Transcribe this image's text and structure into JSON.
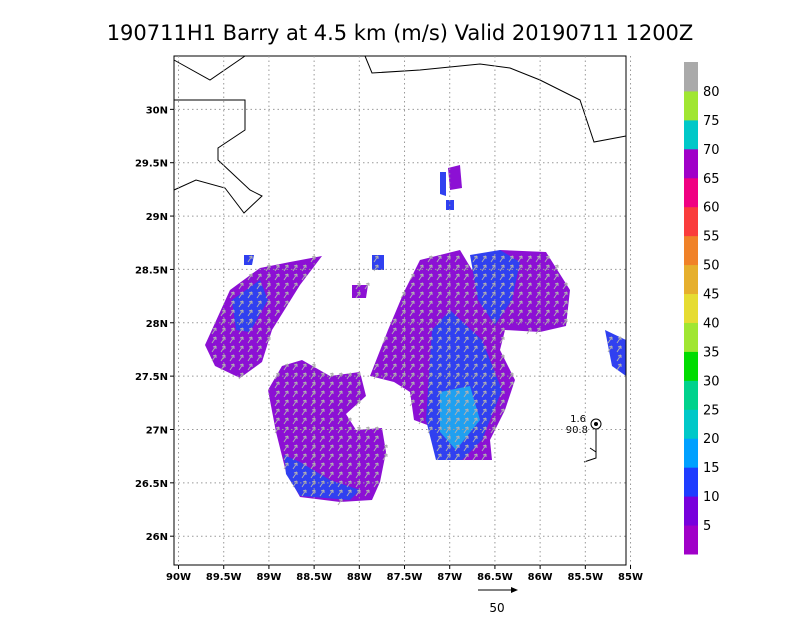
{
  "title": "190711H1 Barry at 4.5 km (m/s) Valid 20190711  1200Z",
  "x_axis": {
    "lim": [
      -90.05,
      -85.05
    ],
    "ticks": [
      {
        "value": -90,
        "label": "90W"
      },
      {
        "value": -89.5,
        "label": "89.5W"
      },
      {
        "value": -89,
        "label": "89W"
      },
      {
        "value": -88.5,
        "label": "88.5W"
      },
      {
        "value": -88,
        "label": "88W"
      },
      {
        "value": -87.5,
        "label": "87.5W"
      },
      {
        "value": -87,
        "label": "87W"
      },
      {
        "value": -86.5,
        "label": "86.5W"
      },
      {
        "value": -86,
        "label": "86W"
      },
      {
        "value": -85.5,
        "label": "85.5W"
      },
      {
        "value": -85,
        "label": "85W"
      }
    ]
  },
  "y_axis": {
    "lim": [
      25.73,
      30.5
    ],
    "ticks": [
      {
        "value": 26,
        "label": "26N"
      },
      {
        "value": 26.5,
        "label": "26.5N"
      },
      {
        "value": 27,
        "label": "27N"
      },
      {
        "value": 27.5,
        "label": "27.5N"
      },
      {
        "value": 28,
        "label": "28N"
      },
      {
        "value": 28.5,
        "label": "28.5N"
      },
      {
        "value": 29,
        "label": "29N"
      },
      {
        "value": 29.5,
        "label": "29.5N"
      },
      {
        "value": 30,
        "label": "30N"
      }
    ]
  },
  "colorbar": {
    "labels": [
      5,
      10,
      15,
      20,
      25,
      30,
      35,
      40,
      45,
      50,
      55,
      60,
      65,
      70,
      75,
      80
    ],
    "colors": [
      "#a000c8",
      "#7800dc",
      "#1e3cff",
      "#00a0ff",
      "#00c8c8",
      "#00d28c",
      "#00dc00",
      "#a0e632",
      "#e6dc32",
      "#e6af2d",
      "#f08228",
      "#fa3c3c",
      "#f00082",
      "#a000c8",
      "#00c8c8",
      "#a0e632",
      "#aaaaaa"
    ]
  },
  "storm": {
    "lines": [
      "1.6",
      "90.8"
    ]
  },
  "reference_vector": {
    "label": "50"
  }
}
